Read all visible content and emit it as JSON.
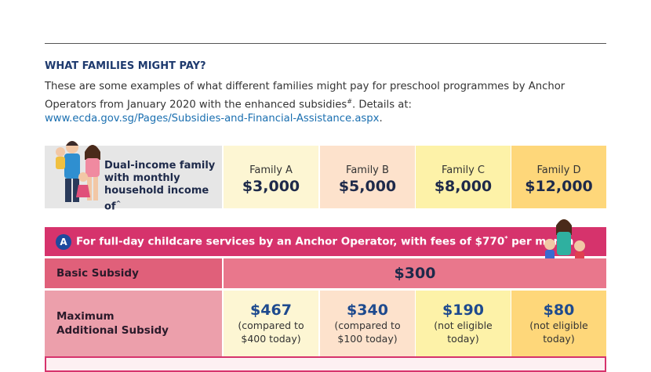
{
  "section": {
    "heading": "WHAT FAMILIES MIGHT PAY?",
    "intro": {
      "text": "These are some examples of what different families might pay for preschool programmes by Anchor Operators from January 2020 with the enhanced subsidies",
      "mark": "#",
      "middle": ". Details at: ",
      "link": "www.ecda.gov.sg/Pages/Subsidies-and-Financial-Assistance.aspx",
      "end": "."
    }
  },
  "families": {
    "label": "Dual-income family with monthly household income of",
    "label_mark": "^",
    "columns": [
      {
        "name": "Family A",
        "income": "$3,000"
      },
      {
        "name": "Family B",
        "income": "$5,000"
      },
      {
        "name": "Family C",
        "income": "$8,000"
      },
      {
        "name": "Family D",
        "income": "$12,000"
      }
    ]
  },
  "banner": {
    "badge": "A",
    "text": "For full-day childcare services by an Anchor Operator, with fees of $770",
    "mark": "*",
    "end": " per month"
  },
  "rows": [
    {
      "label": "Basic Subsidy",
      "value": "$300"
    },
    {
      "label": "Maximum Additional Subsidy",
      "cells": [
        {
          "amount": "$467",
          "note": "(compared to $400 today)"
        },
        {
          "amount": "$340",
          "note": "(compared to $100 today)"
        },
        {
          "amount": "$190",
          "note": "(not eligible today)"
        },
        {
          "amount": "$80",
          "note": "(not eligible today)"
        }
      ]
    }
  ]
}
